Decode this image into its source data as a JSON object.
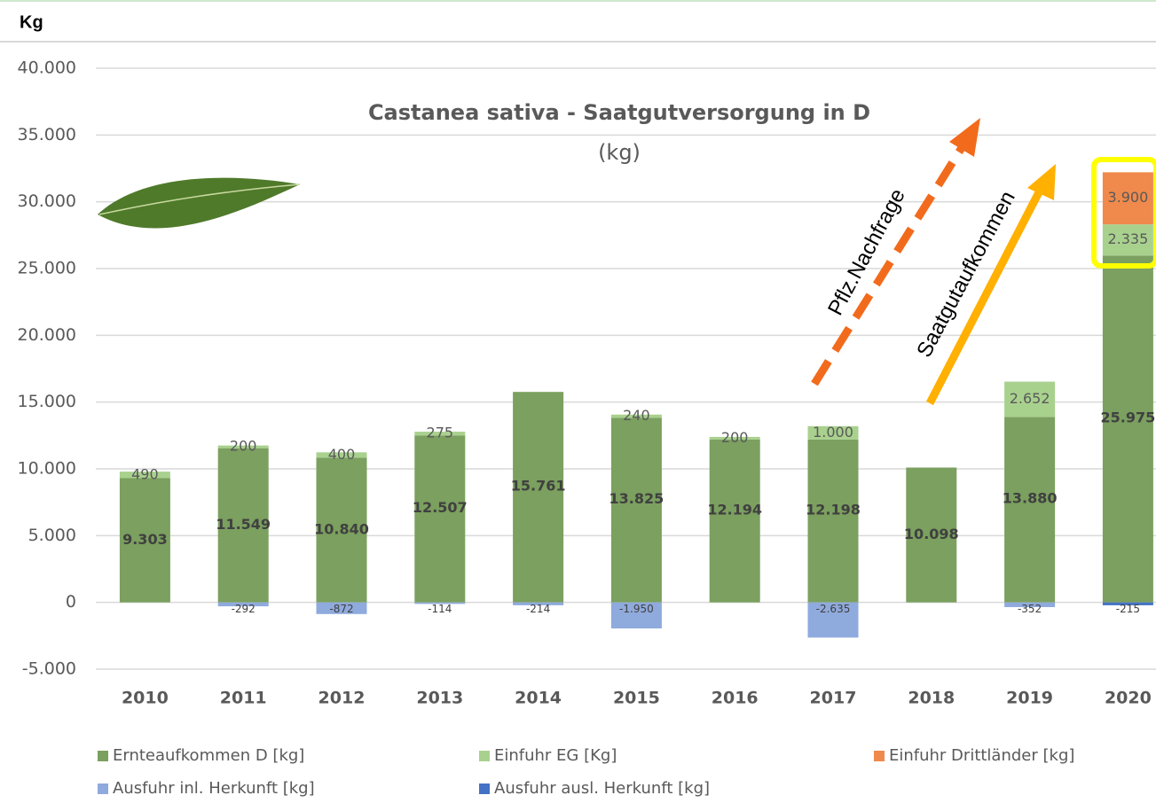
{
  "chart_data": {
    "type": "bar",
    "stacked": true,
    "title": "Castanea sativa - Saatgutversorgung in D",
    "subtitle": "(kg)",
    "y_label": "Kg",
    "annotations": [
      "Pflz.Nachfrage",
      "Saatgutaufkommen"
    ],
    "categories": [
      "2010",
      "2011",
      "2012",
      "2013",
      "2014",
      "2015",
      "2016",
      "2017",
      "2018",
      "2019",
      "2020"
    ],
    "series": [
      {
        "name": "Ernteaufkommen D [kg]",
        "color": "#7ba05f",
        "values": [
          9303,
          11549,
          10840,
          12507,
          15761,
          13825,
          12194,
          12198,
          10098,
          13880,
          25975
        ],
        "value_labels": [
          "9.303",
          "11.549",
          "10.840",
          "12.507",
          "15.761",
          "13.825",
          "12.194",
          "12.198",
          "10.098",
          "13.880",
          "25.975"
        ]
      },
      {
        "name": "Einfuhr EG [Kg]",
        "color": "#a9d18e",
        "values": [
          490,
          200,
          400,
          275,
          null,
          240,
          200,
          1000,
          null,
          2652,
          2335
        ],
        "value_labels": [
          "490",
          "200",
          "400",
          "275",
          null,
          "240",
          "200",
          "1.000",
          null,
          "2.652",
          "2.335"
        ]
      },
      {
        "name": "Einfuhr Drittländer [kg]",
        "color": "#ef8a4c",
        "values": [
          null,
          null,
          null,
          null,
          null,
          null,
          null,
          null,
          null,
          null,
          3900
        ],
        "value_labels": [
          null,
          null,
          null,
          null,
          null,
          null,
          null,
          null,
          null,
          null,
          "3.900"
        ]
      },
      {
        "name": "Ausfuhr inl. Herkunft [kg]",
        "color": "#8faadc",
        "values": [
          null,
          -292,
          -872,
          -114,
          -214,
          -1950,
          null,
          -2635,
          null,
          -352,
          null
        ],
        "value_labels": [
          null,
          "-292",
          "-872",
          "-114",
          "-214",
          "-1.950",
          null,
          "-2.635",
          null,
          "-352",
          null
        ]
      },
      {
        "name": "Ausfuhr ausl. Herkunft [kg]",
        "color": "#4472c4",
        "values": [
          null,
          null,
          null,
          null,
          null,
          null,
          null,
          null,
          null,
          null,
          -215
        ],
        "value_labels": [
          null,
          null,
          null,
          null,
          null,
          null,
          null,
          null,
          null,
          null,
          "-215"
        ]
      }
    ],
    "ylim": [
      -5000,
      40000
    ],
    "yticks": [
      {
        "value": -5000,
        "label": "-5.000"
      },
      0,
      {
        "value": 5000,
        "label": "5.000"
      },
      {
        "value": 10000,
        "label": "10.000"
      },
      {
        "value": 15000,
        "label": "15.000"
      },
      {
        "value": 20000,
        "label": "20.000"
      },
      {
        "value": 25000,
        "label": "25.000"
      },
      {
        "value": 30000,
        "label": "30.000"
      },
      {
        "value": 35000,
        "label": "35.000"
      },
      {
        "value": 40000,
        "label": "40.000"
      }
    ],
    "grid": true,
    "legend": "bottom"
  }
}
